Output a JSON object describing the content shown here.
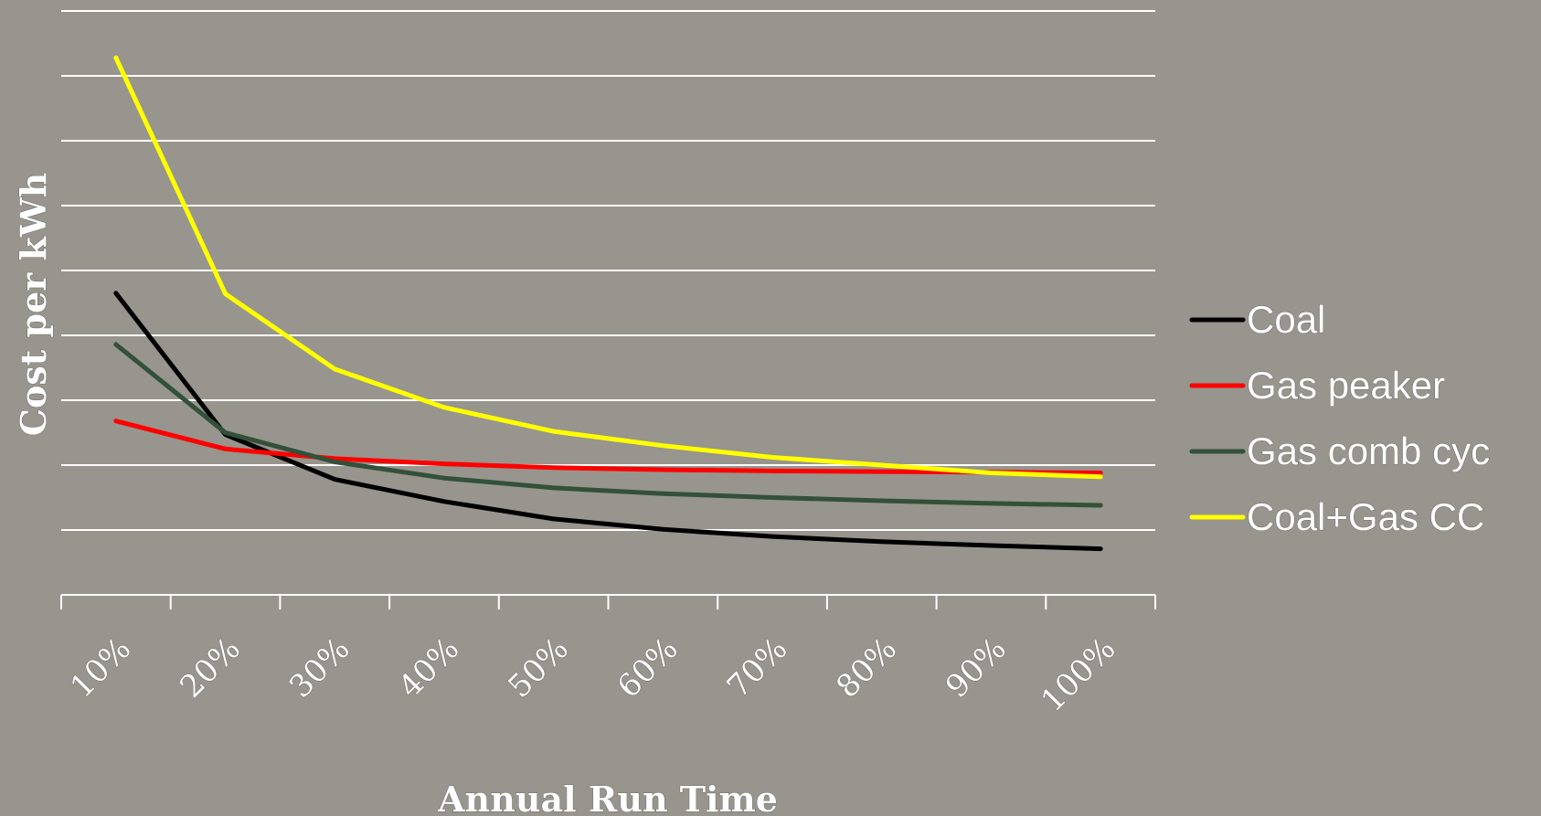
{
  "chart_data": {
    "type": "line",
    "title": "",
    "xlabel": "Annual Run Time",
    "ylabel": "Cost per kWh",
    "categories": [
      "10%",
      "20%",
      "30%",
      "40%",
      "50%",
      "60%",
      "70%",
      "80%",
      "90%",
      "100%"
    ],
    "ylim": [
      0,
      9
    ],
    "y_tick_labels_shown": false,
    "grid": "horizontal",
    "legend_position": "right",
    "series": [
      {
        "name": "Coal",
        "color": "#000000",
        "values": [
          4.65,
          2.47,
          1.78,
          1.44,
          1.17,
          1.01,
          0.9,
          0.82,
          0.76,
          0.71
        ]
      },
      {
        "name": "Gas peaker",
        "color": "#FF0000",
        "values": [
          2.68,
          2.25,
          2.1,
          2.02,
          1.96,
          1.93,
          1.91,
          1.9,
          1.89,
          1.88
        ]
      },
      {
        "name": "Gas comb cyc",
        "color": "#33503A",
        "values": [
          3.86,
          2.5,
          2.05,
          1.8,
          1.65,
          1.56,
          1.5,
          1.45,
          1.41,
          1.38
        ]
      },
      {
        "name": "Coal+Gas CC",
        "color": "#FFFF00",
        "values": [
          8.28,
          4.64,
          3.48,
          2.89,
          2.52,
          2.3,
          2.12,
          2.0,
          1.88,
          1.82
        ]
      }
    ]
  }
}
